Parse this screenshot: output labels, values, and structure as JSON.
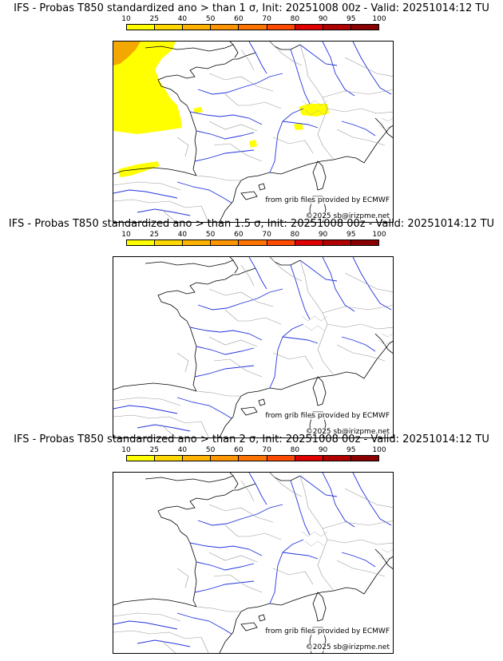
{
  "colorbar": {
    "labels": [
      "10",
      "25",
      "40",
      "50",
      "60",
      "70",
      "80",
      "90",
      "95",
      "100"
    ],
    "colors": [
      "#ffff00",
      "#ffd700",
      "#ffb300",
      "#ff9500",
      "#ff7400",
      "#ff4a00",
      "#e00000",
      "#b00000",
      "#8a0000",
      "#5a0000"
    ]
  },
  "panels": [
    {
      "title": "IFS - Probas T850  standardized ano > than 1 σ, Init: 20251008 00z - Valid: 20251014:12 TU",
      "credit": "from grib files provided by ECMWF",
      "copyright": "©2025 sb@irizpme.net",
      "probability_areas": [
        {
          "region": "Atlantic off Brittany and Bay of Biscay",
          "range": "10-25"
        },
        {
          "region": "far north-west corner",
          "range": "25-40"
        },
        {
          "region": "Cantabrian coast of northern Spain",
          "range": "10-25"
        },
        {
          "region": "western Alps / Switzerland",
          "range": "10-25"
        },
        {
          "region": "Massif Central",
          "range": "10-25"
        }
      ]
    },
    {
      "title": "IFS - Probas T850  standardized ano > than 1.5 σ, Init: 20251008 00z - Valid: 20251014:12 TU",
      "credit": "from grib files provided by ECMWF",
      "copyright": "©2025 sb@irizpme.net",
      "probability_areas": []
    },
    {
      "title": "IFS - Probas T850  standardized ano > than 2 σ, Init: 20251008 00z - Valid: 20251014:12 TU",
      "credit": "from grib files provided by ECMWF",
      "copyright": "©2025 sb@irizpme.net",
      "probability_areas": []
    }
  ]
}
